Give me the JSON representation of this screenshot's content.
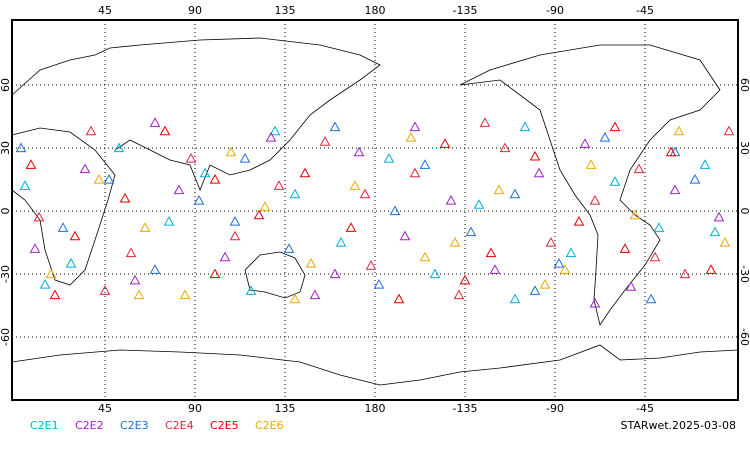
{
  "chart_data": {
    "type": "scatter",
    "marker": "triangle",
    "xlim": [
      0,
      360
    ],
    "ylim": [
      -90,
      90
    ],
    "xticks": [
      45,
      90,
      135,
      180,
      {
        "value": 225,
        "label": "-135"
      },
      {
        "value": 270,
        "label": "-90"
      },
      {
        "value": 315,
        "label": "-45"
      }
    ],
    "yticks": [
      -60,
      -30,
      0,
      30,
      60
    ],
    "grid": true,
    "footer": "STARwet.2025-03-08",
    "series": [
      {
        "name": "C2E1",
        "color": "#00b0d8",
        "x": [
          5,
          28,
          52,
          77,
          95,
          118,
          140,
          163,
          187,
          210,
          232,
          255,
          278,
          300,
          322,
          345,
          15,
          130,
          250,
          350
        ],
        "values": [
          12,
          -25,
          30,
          -5,
          18,
          -38,
          8,
          -15,
          25,
          -30,
          3,
          40,
          -20,
          14,
          -8,
          22,
          -35,
          38,
          -42,
          -10
        ]
      },
      {
        "name": "C2E2",
        "color": "#a020c8",
        "x": [
          10,
          35,
          60,
          82,
          105,
          128,
          150,
          172,
          195,
          218,
          240,
          262,
          285,
          308,
          330,
          352,
          70,
          200,
          290,
          160
        ],
        "values": [
          -18,
          20,
          -33,
          10,
          -22,
          35,
          -40,
          28,
          -12,
          5,
          -28,
          18,
          32,
          -36,
          10,
          -3,
          42,
          40,
          -44,
          -30
        ]
      },
      {
        "name": "C2E3",
        "color": "#1e6ee0",
        "x": [
          3,
          24,
          47,
          70,
          92,
          115,
          137,
          160,
          182,
          205,
          228,
          250,
          272,
          295,
          318,
          340,
          190,
          110,
          330,
          260
        ],
        "values": [
          30,
          -8,
          15,
          -28,
          5,
          25,
          -18,
          40,
          -35,
          22,
          -10,
          8,
          -25,
          35,
          -42,
          15,
          0,
          -5,
          28,
          -38
        ]
      },
      {
        "name": "C2E4",
        "color": "#e0283c",
        "x": [
          12,
          38,
          58,
          88,
          110,
          132,
          155,
          178,
          200,
          222,
          245,
          268,
          290,
          312,
          335,
          357,
          45,
          175,
          235,
          320
        ],
        "values": [
          -3,
          38,
          -20,
          25,
          -12,
          12,
          33,
          -26,
          18,
          -40,
          30,
          -15,
          5,
          20,
          -30,
          38,
          -38,
          8,
          42,
          -22
        ]
      },
      {
        "name": "C2E5",
        "color": "#e00000",
        "x": [
          8,
          30,
          55,
          75,
          100,
          122,
          145,
          168,
          192,
          215,
          238,
          260,
          282,
          305,
          328,
          348,
          100,
          225,
          300,
          20
        ],
        "values": [
          22,
          -12,
          6,
          38,
          -30,
          -2,
          18,
          -8,
          -42,
          32,
          -20,
          26,
          -5,
          -18,
          28,
          -28,
          15,
          -33,
          40,
          -40
        ]
      },
      {
        "name": "C2E6",
        "color": "#f0a800",
        "x": [
          18,
          42,
          65,
          85,
          108,
          125,
          148,
          170,
          198,
          220,
          242,
          265,
          288,
          310,
          332,
          355,
          140,
          205,
          275,
          62
        ],
        "values": [
          -30,
          15,
          -8,
          -40,
          28,
          2,
          -25,
          12,
          35,
          -15,
          10,
          -35,
          22,
          -2,
          38,
          -15,
          -42,
          -22,
          -28,
          -40
        ]
      }
    ]
  }
}
